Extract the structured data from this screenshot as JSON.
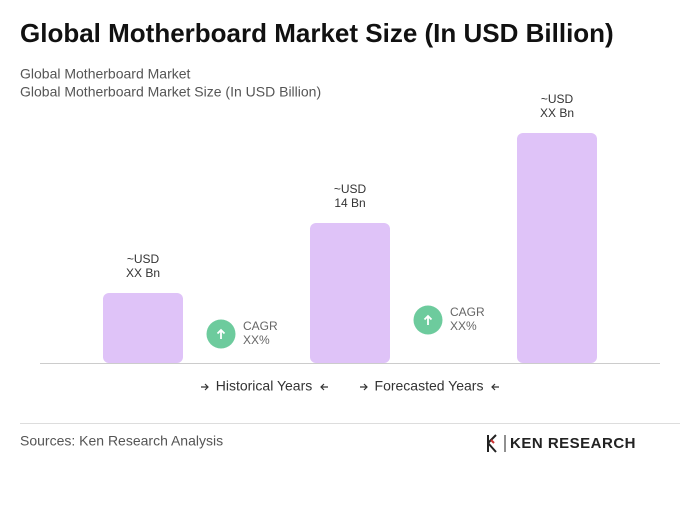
{
  "chart_data": {
    "type": "bar",
    "title": "Global Motherboard Market Size (In USD Billion)",
    "subtitle": [
      "Global Motherboard Market",
      "Global Motherboard Market Size (In USD Billion)"
    ],
    "categories": [
      null,
      null,
      null
    ],
    "values": [
      7,
      14,
      23
    ],
    "value_labels": [
      [
        "~USD",
        "XX Bn"
      ],
      [
        "~USD",
        "14 Bn"
      ],
      [
        "~USD",
        "XX Bn"
      ]
    ],
    "color": "#dfc3f8",
    "annotations": [
      [
        "CAGR",
        "XX%"
      ],
      [
        "CAGR",
        "XX%"
      ]
    ],
    "annotation_color": "#6dcb9d",
    "periods": [
      "Historical Years",
      "Forecasted Years"
    ],
    "source": "Sources: Ken Research Analysis",
    "logo": "KEN RESEARCH"
  }
}
